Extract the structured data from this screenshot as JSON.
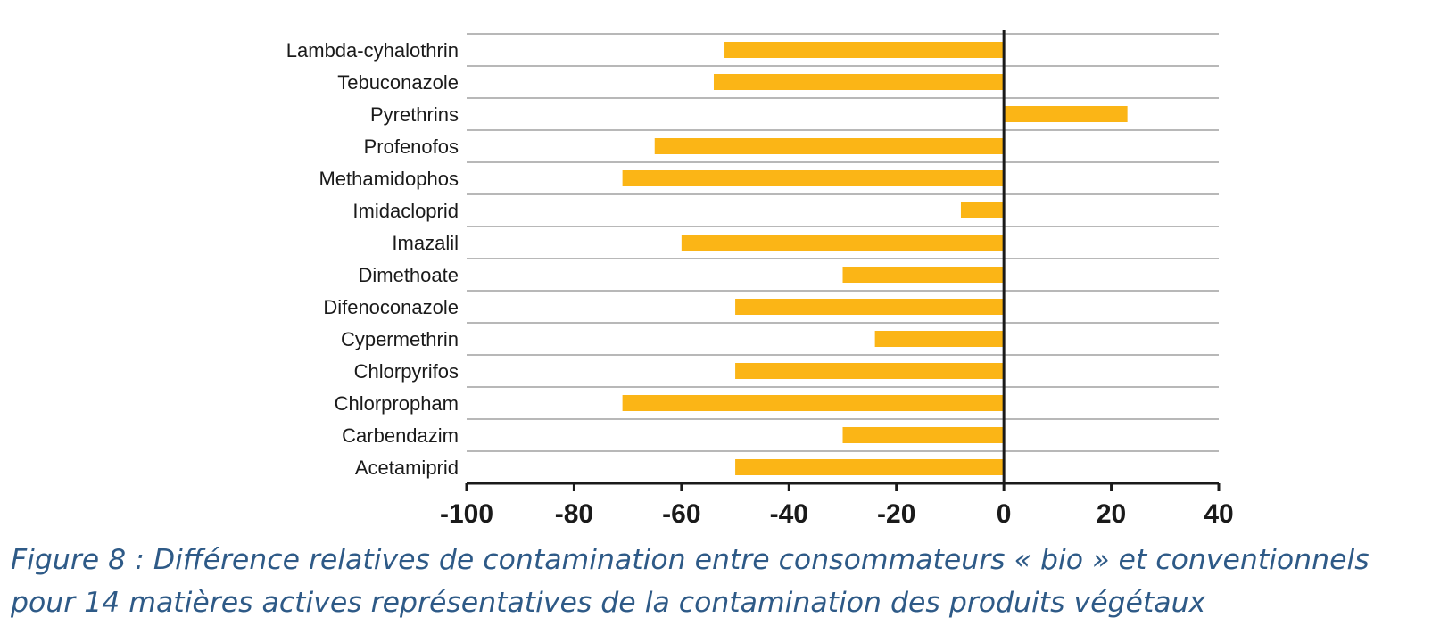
{
  "chart_data": {
    "type": "bar",
    "orientation": "horizontal",
    "categories": [
      "Lambda-cyhalothrin",
      "Tebuconazole",
      "Pyrethrins",
      "Profenofos",
      "Methamidophos",
      "Imidacloprid",
      "Imazalil",
      "Dimethoate",
      "Difenoconazole",
      "Cypermethrin",
      "Chlorpyrifos",
      "Chlorpropham",
      "Carbendazim",
      "Acetamiprid"
    ],
    "values": [
      -52,
      -54,
      23,
      -65,
      -71,
      -8,
      -60,
      -30,
      -50,
      -24,
      -50,
      -71,
      -30,
      -50
    ],
    "xlim": [
      -100,
      40
    ],
    "xticks": [
      -100,
      -80,
      -60,
      -40,
      -20,
      0,
      20,
      40
    ],
    "xtick_labels": [
      "-100",
      "-80",
      "-60",
      "-40",
      "-20",
      "0",
      "20",
      "40"
    ],
    "title": "",
    "xlabel": "",
    "ylabel": "",
    "grid": "horizontal lines",
    "bar_color": "#fbb516",
    "grid_color": "#b8b8b8",
    "axis_color": "#1a1a1a"
  },
  "caption": {
    "line1": "Figure 8 : Différence relatives de contamination entre consommateurs « bio » et conventionnels",
    "line2": "pour 14 matières actives représentatives de la contamination des produits végétaux",
    "color": "#2e5a87"
  }
}
